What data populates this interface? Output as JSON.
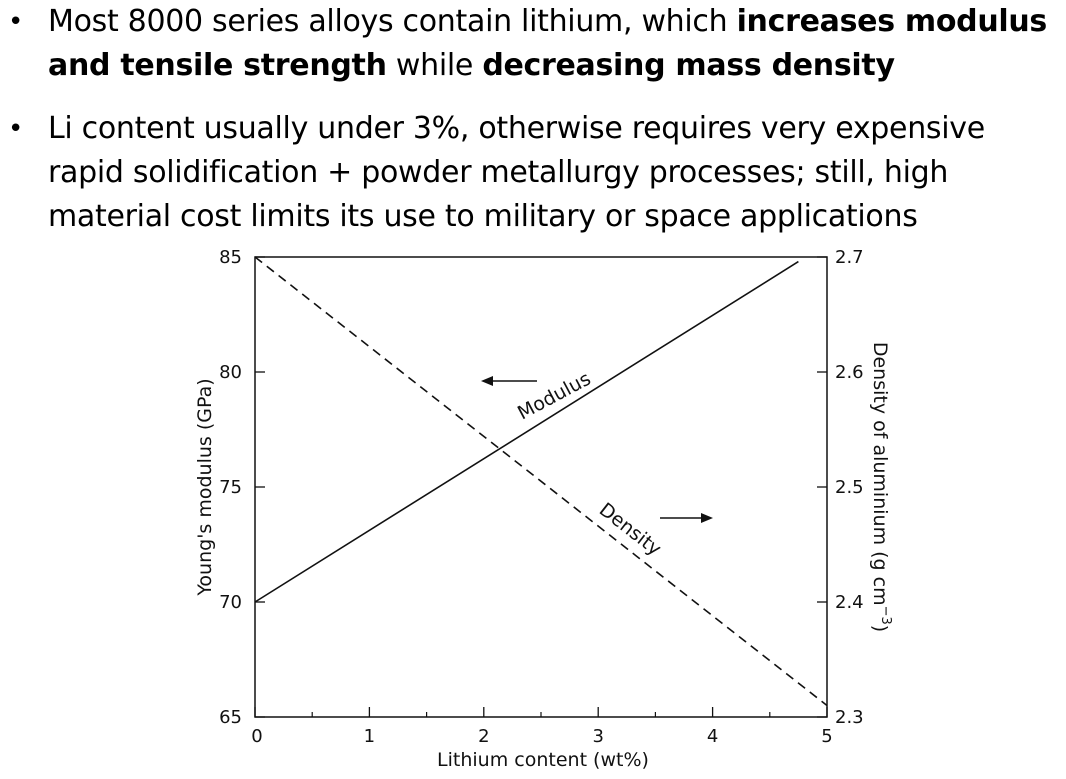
{
  "bullets": [
    {
      "segments": [
        {
          "text": "Most 8000 series alloys contain lithium, which ",
          "bold": false
        },
        {
          "text": "increases modulus and tensile strength",
          "bold": true
        },
        {
          "text": " while ",
          "bold": false
        },
        {
          "text": "decreasing mass density",
          "bold": true
        }
      ]
    },
    {
      "segments": [
        {
          "text": "Li content usually under 3%, otherwise requires very expensive rapid solidification + powder metallurgy processes; still, high material cost limits its use to military or space applications",
          "bold": false
        }
      ]
    }
  ],
  "chart_data": {
    "type": "line",
    "xlabel": "Lithium content (wt%)",
    "ylabel_left": "Young's modulus (GPa)",
    "ylabel_right_main": "Density of aluminium (g cm",
    "ylabel_right_sup": "−3",
    "ylabel_right_close": ")",
    "xlim": [
      0,
      5
    ],
    "ylim_left": [
      65,
      85
    ],
    "ylim_right": [
      2.3,
      2.7
    ],
    "x_ticks": [
      0,
      1,
      2,
      3,
      4,
      5
    ],
    "x_tick_labels": [
      "0",
      "1",
      "2",
      "3",
      "4",
      "5"
    ],
    "y_left_ticks": [
      65,
      70,
      75,
      80,
      85
    ],
    "y_left_tick_labels": [
      "65",
      "70",
      "75",
      "80",
      "85"
    ],
    "y_right_ticks": [
      2.3,
      2.4,
      2.5,
      2.6,
      2.7
    ],
    "y_right_tick_labels": [
      "2.3",
      "2.4",
      "2.5",
      "2.6",
      "2.7"
    ],
    "grid": false,
    "series": [
      {
        "name": "Modulus",
        "axis": "left",
        "style": "solid",
        "x": [
          0,
          4.75
        ],
        "y": [
          70,
          84.8
        ]
      },
      {
        "name": "Density",
        "axis": "right",
        "style": "dashed",
        "x": [
          0,
          5
        ],
        "y": [
          2.7,
          2.31
        ]
      }
    ]
  }
}
